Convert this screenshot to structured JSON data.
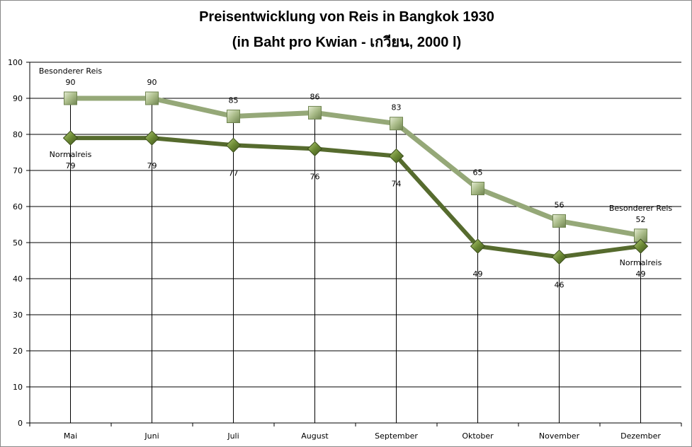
{
  "chart_data": {
    "type": "line",
    "title": "Preisentwicklung von Reis in Bangkok  1930",
    "subtitle": "(in Baht pro Kwian - เกวียน, 2000 l)",
    "xlabel": "",
    "ylabel": "",
    "ylim": [
      0,
      100
    ],
    "yticks": [
      0,
      10,
      20,
      30,
      40,
      50,
      60,
      70,
      80,
      90,
      100
    ],
    "grid": true,
    "categories": [
      "Mai",
      "Juni",
      "Juli",
      "August",
      "September",
      "Oktober",
      "November",
      "Dezember"
    ],
    "series": [
      {
        "name": "Besonderer Reis",
        "values": [
          90,
          90,
          85,
          86,
          83,
          65,
          56,
          52
        ],
        "color": "#95a878",
        "marker": "square"
      },
      {
        "name": "Normalreis",
        "values": [
          79,
          79,
          77,
          76,
          74,
          49,
          46,
          49
        ],
        "color": "#566b2e",
        "marker": "diamond"
      }
    ]
  }
}
